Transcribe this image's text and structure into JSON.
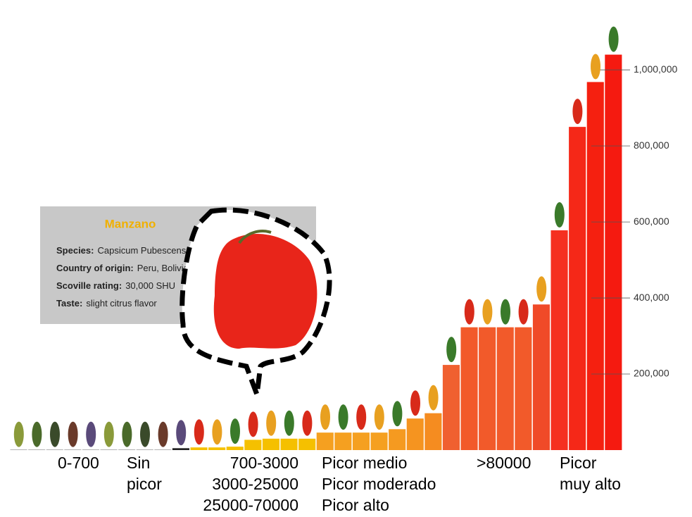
{
  "chart_data": {
    "type": "bar",
    "values": [
      700,
      700,
      700,
      700,
      700,
      700,
      700,
      700,
      700,
      5000,
      7000,
      7000,
      9000,
      27000,
      30000,
      30000,
      30000,
      46000,
      46000,
      46000,
      46000,
      55000,
      83000,
      97000,
      224000,
      323000,
      323000,
      323000,
      323000,
      383000,
      578000,
      850000,
      968000,
      1040000
    ],
    "colors": [
      "#333333",
      "#333333",
      "#333333",
      "#333333",
      "#333333",
      "#333333",
      "#333333",
      "#333333",
      "#333333",
      "#222222",
      "#f5c000",
      "#f5c000",
      "#f5c000",
      "#f5c000",
      "#f5c000",
      "#f5c000",
      "#f5c000",
      "#f5a020",
      "#f5a020",
      "#f5a020",
      "#f5a020",
      "#f59a20",
      "#f59420",
      "#f58c20",
      "#f06030",
      "#f25a2a",
      "#f25a2a",
      "#f25a2a",
      "#f25a2a",
      "#f04a28",
      "#f53020",
      "#f52818",
      "#f52010",
      "#f51a10"
    ],
    "ylim": [
      0,
      1180000
    ],
    "yticks": [
      {
        "value": 200000,
        "label": "200,000"
      },
      {
        "value": 400000,
        "label": "400,000"
      },
      {
        "value": 600000,
        "label": "600,000"
      },
      {
        "value": 800000,
        "label": "800,000"
      },
      {
        "value": 1000000,
        "label": "1,000,000"
      }
    ],
    "annotations": [
      [
        "0-700"
      ],
      [
        "Sin",
        "picor"
      ],
      [
        "700-3000",
        "3000-25000",
        "25000-70000"
      ],
      [
        "Picor medio",
        "Picor moderado",
        "Picor alto"
      ],
      [
        ">80000"
      ],
      [
        "Picor",
        "muy alto"
      ]
    ],
    "info_box": {
      "title": "Manzano",
      "rows": [
        {
          "label": "Species:",
          "value": "Capsicum Pubescens"
        },
        {
          "label": "Country of origin:",
          "value": "Peru, Bolivia"
        },
        {
          "label": "Scoville rating:",
          "value": "30,000 SHU"
        },
        {
          "label": "Taste:",
          "value": "slight citrus flavor"
        }
      ]
    }
  }
}
